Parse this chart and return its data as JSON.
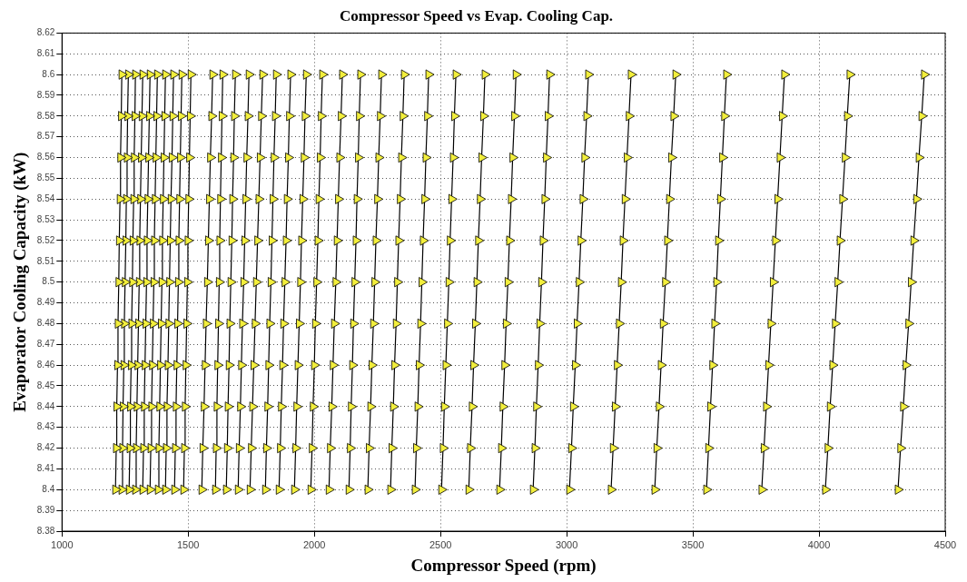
{
  "chart_data": {
    "type": "line",
    "title": "Compressor Speed vs Evap. Cooling Cap.",
    "xlabel": "Compressor Speed (rpm)",
    "ylabel": "Evaporator Cooling Capacity (kW)",
    "xlim": [
      1000,
      4500
    ],
    "xticks": [
      1000,
      1500,
      2000,
      2500,
      3000,
      3500,
      4000,
      4500
    ],
    "ylim": [
      8.38,
      8.62
    ],
    "yticks": [
      8.38,
      8.39,
      8.4,
      8.41,
      8.42,
      8.43,
      8.44,
      8.45,
      8.46,
      8.47,
      8.48,
      8.49,
      8.5,
      8.51,
      8.52,
      8.53,
      8.54,
      8.55,
      8.56,
      8.57,
      8.58,
      8.59,
      8.6,
      8.61,
      8.62
    ],
    "grid": true,
    "legend": false,
    "marker": "triangle",
    "line_style": "solid",
    "series": [
      {
        "color": "#f2ee3c",
        "x": [
          1212,
          1215,
          1217,
          1220,
          1222,
          1225,
          1227,
          1230,
          1232,
          1235,
          1237
        ],
        "values": [
          8.4,
          8.42,
          8.44,
          8.46,
          8.48,
          8.5,
          8.52,
          8.54,
          8.56,
          8.58,
          8.6
        ]
      },
      {
        "color": "#f2ee3c",
        "x": [
          1237,
          1240,
          1242,
          1245,
          1247,
          1250,
          1253,
          1255,
          1258,
          1260,
          1263
        ],
        "values": [
          8.4,
          8.42,
          8.44,
          8.46,
          8.48,
          8.5,
          8.52,
          8.54,
          8.56,
          8.58,
          8.6
        ]
      },
      {
        "color": "#f2ee3c",
        "x": [
          1266,
          1269,
          1271,
          1274,
          1276,
          1279,
          1281,
          1284,
          1286,
          1289,
          1291
        ],
        "values": [
          8.4,
          8.42,
          8.44,
          8.46,
          8.48,
          8.5,
          8.52,
          8.54,
          8.56,
          8.58,
          8.6
        ]
      },
      {
        "color": "#f2ee3c",
        "x": [
          1291,
          1294,
          1297,
          1300,
          1303,
          1306,
          1308,
          1311,
          1314,
          1317,
          1320
        ],
        "values": [
          8.4,
          8.42,
          8.44,
          8.46,
          8.48,
          8.5,
          8.52,
          8.54,
          8.56,
          8.58,
          8.6
        ]
      },
      {
        "color": "#f2ee3c",
        "x": [
          1320,
          1323,
          1326,
          1329,
          1332,
          1335,
          1337,
          1340,
          1343,
          1346,
          1349
        ],
        "values": [
          8.4,
          8.42,
          8.44,
          8.46,
          8.48,
          8.5,
          8.52,
          8.54,
          8.56,
          8.58,
          8.6
        ]
      },
      {
        "color": "#f2ee3c",
        "x": [
          1349,
          1352,
          1355,
          1358,
          1361,
          1364,
          1366,
          1369,
          1372,
          1375,
          1378
        ],
        "values": [
          8.4,
          8.42,
          8.44,
          8.46,
          8.48,
          8.5,
          8.52,
          8.54,
          8.56,
          8.58,
          8.6
        ]
      },
      {
        "color": "#f2ee3c",
        "x": [
          1381,
          1384,
          1387,
          1390,
          1393,
          1396,
          1398,
          1401,
          1404,
          1407,
          1410
        ],
        "values": [
          8.4,
          8.42,
          8.44,
          8.46,
          8.48,
          8.5,
          8.52,
          8.54,
          8.56,
          8.58,
          8.6
        ]
      },
      {
        "color": "#f2ee3c",
        "x": [
          1410,
          1413,
          1416,
          1420,
          1423,
          1426,
          1429,
          1432,
          1436,
          1439,
          1442
        ],
        "values": [
          8.4,
          8.42,
          8.44,
          8.46,
          8.48,
          8.5,
          8.52,
          8.54,
          8.56,
          8.58,
          8.6
        ]
      },
      {
        "color": "#f2ee3c",
        "x": [
          1446,
          1449,
          1452,
          1455,
          1458,
          1461,
          1463,
          1466,
          1469,
          1472,
          1475
        ],
        "values": [
          8.4,
          8.42,
          8.44,
          8.46,
          8.48,
          8.5,
          8.52,
          8.54,
          8.56,
          8.58,
          8.6
        ]
      },
      {
        "color": "#f2ee3c",
        "x": [
          1482,
          1485,
          1488,
          1491,
          1494,
          1497,
          1499,
          1502,
          1505,
          1508,
          1511
        ],
        "values": [
          8.4,
          8.42,
          8.44,
          8.46,
          8.48,
          8.5,
          8.52,
          8.54,
          8.56,
          8.58,
          8.6
        ]
      },
      {
        "color": "#f2ee3c",
        "x": [
          1554,
          1558,
          1563,
          1567,
          1571,
          1576,
          1580,
          1584,
          1588,
          1593,
          1597
        ],
        "values": [
          8.4,
          8.42,
          8.44,
          8.46,
          8.48,
          8.5,
          8.52,
          8.54,
          8.56,
          8.58,
          8.6
        ]
      },
      {
        "color": "#f2ee3c",
        "x": [
          1608,
          1611,
          1614,
          1617,
          1620,
          1623,
          1625,
          1628,
          1631,
          1634,
          1637
        ],
        "values": [
          8.4,
          8.42,
          8.44,
          8.46,
          8.48,
          8.5,
          8.52,
          8.54,
          8.56,
          8.58,
          8.6
        ]
      },
      {
        "color": "#f2ee3c",
        "x": [
          1651,
          1655,
          1658,
          1662,
          1665,
          1669,
          1673,
          1676,
          1680,
          1683,
          1687
        ],
        "values": [
          8.4,
          8.42,
          8.44,
          8.46,
          8.48,
          8.5,
          8.52,
          8.54,
          8.56,
          8.58,
          8.6
        ]
      },
      {
        "color": "#f2ee3c",
        "x": [
          1698,
          1702,
          1707,
          1711,
          1715,
          1720,
          1724,
          1728,
          1732,
          1737,
          1741
        ],
        "values": [
          8.4,
          8.42,
          8.44,
          8.46,
          8.48,
          8.5,
          8.52,
          8.54,
          8.56,
          8.58,
          8.6
        ]
      },
      {
        "color": "#f2ee3c",
        "x": [
          1745,
          1750,
          1755,
          1760,
          1765,
          1770,
          1775,
          1780,
          1785,
          1790,
          1795
        ],
        "values": [
          8.4,
          8.42,
          8.44,
          8.46,
          8.48,
          8.5,
          8.52,
          8.54,
          8.56,
          8.58,
          8.6
        ]
      },
      {
        "color": "#f2ee3c",
        "x": [
          1806,
          1810,
          1815,
          1819,
          1823,
          1828,
          1832,
          1836,
          1840,
          1845,
          1849
        ],
        "values": [
          8.4,
          8.42,
          8.44,
          8.46,
          8.48,
          8.5,
          8.52,
          8.54,
          8.56,
          8.58,
          8.6
        ]
      },
      {
        "color": "#f2ee3c",
        "x": [
          1860,
          1865,
          1869,
          1874,
          1878,
          1883,
          1888,
          1892,
          1897,
          1901,
          1906
        ],
        "values": [
          8.4,
          8.42,
          8.44,
          8.46,
          8.48,
          8.5,
          8.52,
          8.54,
          8.56,
          8.58,
          8.6
        ]
      },
      {
        "color": "#f2ee3c",
        "x": [
          1921,
          1926,
          1930,
          1935,
          1940,
          1945,
          1949,
          1954,
          1959,
          1963,
          1968
        ],
        "values": [
          8.4,
          8.42,
          8.44,
          8.46,
          8.48,
          8.5,
          8.52,
          8.54,
          8.56,
          8.58,
          8.6
        ]
      },
      {
        "color": "#f2ee3c",
        "x": [
          1986,
          1991,
          1995,
          2000,
          2004,
          2009,
          2014,
          2018,
          2023,
          2027,
          2032
        ],
        "values": [
          8.4,
          8.42,
          8.44,
          8.46,
          8.48,
          8.5,
          8.52,
          8.54,
          8.56,
          8.58,
          8.6
        ]
      },
      {
        "color": "#f2ee3c",
        "x": [
          2058,
          2063,
          2069,
          2074,
          2079,
          2085,
          2090,
          2095,
          2100,
          2106,
          2111
        ],
        "values": [
          8.4,
          8.42,
          8.44,
          8.46,
          8.48,
          8.5,
          8.52,
          8.54,
          8.56,
          8.58,
          8.6
        ]
      },
      {
        "color": "#f2ee3c",
        "x": [
          2137,
          2142,
          2146,
          2151,
          2155,
          2160,
          2165,
          2169,
          2174,
          2178,
          2183
        ],
        "values": [
          8.4,
          8.42,
          8.44,
          8.46,
          8.48,
          8.5,
          8.52,
          8.54,
          8.56,
          8.58,
          8.6
        ]
      },
      {
        "color": "#f2ee3c",
        "x": [
          2212,
          2217,
          2223,
          2228,
          2234,
          2239,
          2244,
          2250,
          2255,
          2261,
          2266
        ],
        "values": [
          8.4,
          8.42,
          8.44,
          8.46,
          8.48,
          8.5,
          8.52,
          8.54,
          8.56,
          8.58,
          8.6
        ]
      },
      {
        "color": "#f2ee3c",
        "x": [
          2302,
          2307,
          2313,
          2318,
          2324,
          2329,
          2334,
          2340,
          2345,
          2351,
          2356
        ],
        "values": [
          8.4,
          8.42,
          8.44,
          8.46,
          8.48,
          8.5,
          8.52,
          8.54,
          8.56,
          8.58,
          8.6
        ]
      },
      {
        "color": "#f2ee3c",
        "x": [
          2399,
          2404,
          2410,
          2415,
          2421,
          2426,
          2431,
          2437,
          2442,
          2448,
          2453
        ],
        "values": [
          8.4,
          8.42,
          8.44,
          8.46,
          8.48,
          8.5,
          8.52,
          8.54,
          8.56,
          8.58,
          8.6
        ]
      },
      {
        "color": "#f2ee3c",
        "x": [
          2504,
          2510,
          2515,
          2521,
          2527,
          2533,
          2538,
          2544,
          2550,
          2555,
          2561
        ],
        "values": [
          8.4,
          8.42,
          8.44,
          8.46,
          8.48,
          8.5,
          8.52,
          8.54,
          8.56,
          8.58,
          8.6
        ]
      },
      {
        "color": "#f2ee3c",
        "x": [
          2612,
          2618,
          2625,
          2631,
          2638,
          2644,
          2650,
          2657,
          2663,
          2670,
          2676
        ],
        "values": [
          8.4,
          8.42,
          8.44,
          8.46,
          8.48,
          8.5,
          8.52,
          8.54,
          8.56,
          8.58,
          8.6
        ]
      },
      {
        "color": "#f2ee3c",
        "x": [
          2734,
          2741,
          2747,
          2754,
          2760,
          2767,
          2773,
          2780,
          2786,
          2793,
          2799
        ],
        "values": [
          8.4,
          8.42,
          8.44,
          8.46,
          8.48,
          8.5,
          8.52,
          8.54,
          8.56,
          8.58,
          8.6
        ]
      },
      {
        "color": "#f2ee3c",
        "x": [
          2867,
          2874,
          2880,
          2887,
          2893,
          2900,
          2906,
          2913,
          2919,
          2926,
          2932
        ],
        "values": [
          8.4,
          8.42,
          8.44,
          8.46,
          8.48,
          8.5,
          8.52,
          8.54,
          8.56,
          8.58,
          8.6
        ]
      },
      {
        "color": "#f2ee3c",
        "x": [
          3011,
          3019,
          3026,
          3034,
          3041,
          3049,
          3056,
          3064,
          3071,
          3079,
          3086
        ],
        "values": [
          8.4,
          8.42,
          8.44,
          8.46,
          8.48,
          8.5,
          8.52,
          8.54,
          8.56,
          8.58,
          8.6
        ]
      },
      {
        "color": "#f2ee3c",
        "x": [
          3176,
          3184,
          3192,
          3200,
          3208,
          3216,
          3223,
          3231,
          3239,
          3247,
          3255
        ],
        "values": [
          8.4,
          8.42,
          8.44,
          8.46,
          8.48,
          8.5,
          8.52,
          8.54,
          8.56,
          8.58,
          8.6
        ]
      },
      {
        "color": "#f2ee3c",
        "x": [
          3349,
          3357,
          3366,
          3374,
          3382,
          3391,
          3399,
          3407,
          3415,
          3424,
          3432
        ],
        "values": [
          8.4,
          8.42,
          8.44,
          8.46,
          8.48,
          8.5,
          8.52,
          8.54,
          8.56,
          8.58,
          8.6
        ]
      },
      {
        "color": "#f2ee3c",
        "x": [
          3554,
          3562,
          3570,
          3578,
          3586,
          3594,
          3601,
          3609,
          3617,
          3625,
          3633
        ],
        "values": [
          8.4,
          8.42,
          8.44,
          8.46,
          8.48,
          8.5,
          8.52,
          8.54,
          8.56,
          8.58,
          8.6
        ]
      },
      {
        "color": "#f2ee3c",
        "x": [
          3773,
          3782,
          3791,
          3800,
          3809,
          3818,
          3827,
          3836,
          3845,
          3854,
          3863
        ],
        "values": [
          8.4,
          8.42,
          8.44,
          8.46,
          8.48,
          8.5,
          8.52,
          8.54,
          8.56,
          8.58,
          8.6
        ]
      },
      {
        "color": "#f2ee3c",
        "x": [
          4025,
          4035,
          4044,
          4054,
          4064,
          4074,
          4083,
          4093,
          4103,
          4112,
          4122
        ],
        "values": [
          8.4,
          8.42,
          8.44,
          8.46,
          8.48,
          8.5,
          8.52,
          8.54,
          8.56,
          8.58,
          8.6
        ]
      },
      {
        "color": "#f2ee3c",
        "x": [
          4313,
          4323,
          4334,
          4344,
          4355,
          4365,
          4375,
          4386,
          4396,
          4407,
          4417
        ],
        "values": [
          8.4,
          8.42,
          8.44,
          8.46,
          8.48,
          8.5,
          8.52,
          8.54,
          8.56,
          8.58,
          8.6
        ]
      }
    ]
  }
}
